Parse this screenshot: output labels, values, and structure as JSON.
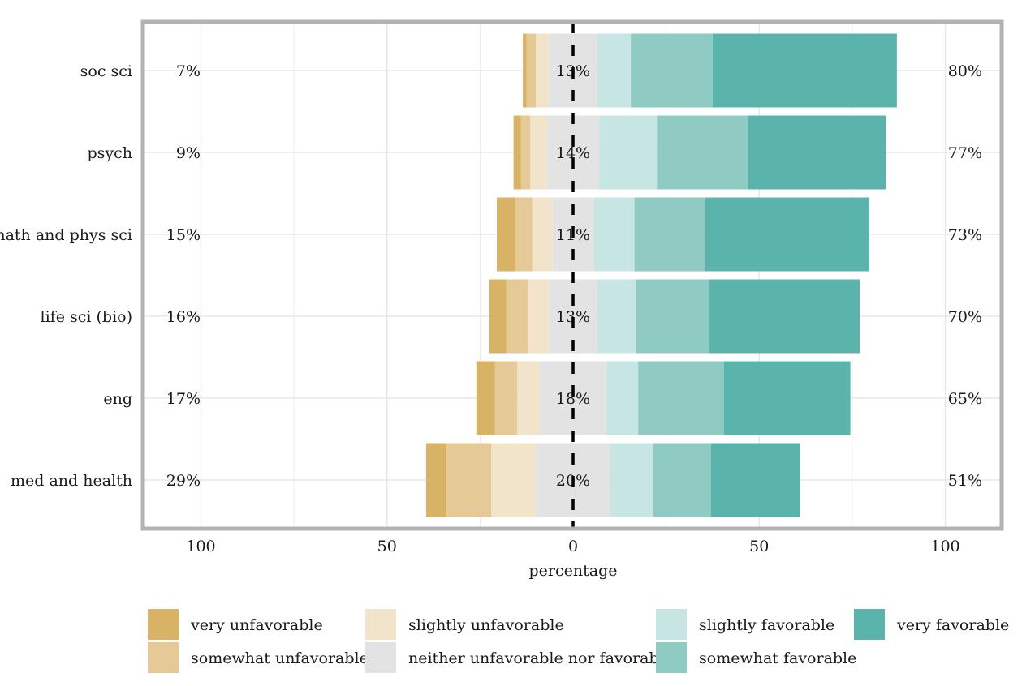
{
  "chart_data": {
    "type": "bar",
    "subtype": "diverging-stacked",
    "xlabel": "percentage",
    "xlim": [
      -115,
      115
    ],
    "xticks": [
      -100,
      -50,
      0,
      50,
      100
    ],
    "xtick_labels": [
      "100",
      "50",
      "0",
      "50",
      "100"
    ],
    "grid": true,
    "legend_position": "bottom",
    "levels": [
      {
        "name": "very unfavorable",
        "color": "#D8B365"
      },
      {
        "name": "somewhat unfavorable",
        "color": "#E5CA98"
      },
      {
        "name": "slightly unfavorable",
        "color": "#F2E4CB"
      },
      {
        "name": "neither unfavorable nor favorable",
        "color": "#E3E3E3"
      },
      {
        "name": "slightly favorable",
        "color": "#C7E5E2"
      },
      {
        "name": "somewhat favorable",
        "color": "#8FCBC2"
      },
      {
        "name": "very favorable",
        "color": "#5AB4AC"
      }
    ],
    "categories": [
      {
        "name": "soc sci",
        "values": [
          1,
          2.5,
          3.5,
          13,
          9,
          22,
          49.5
        ],
        "left_label": "7%",
        "center_label": "13%",
        "right_label": "80%"
      },
      {
        "name": "psych",
        "values": [
          2,
          2.5,
          4.5,
          14,
          15.5,
          24.5,
          37
        ],
        "left_label": "9%",
        "center_label": "14%",
        "right_label": "77%"
      },
      {
        "name": "math and phys sci",
        "values": [
          5,
          4.5,
          5.5,
          11,
          11,
          19,
          44
        ],
        "left_label": "15%",
        "center_label": "11%",
        "right_label": "73%"
      },
      {
        "name": "life sci (bio)",
        "values": [
          4.5,
          6,
          5.5,
          13,
          10.5,
          19.5,
          40.5
        ],
        "left_label": "16%",
        "center_label": "13%",
        "right_label": "70%"
      },
      {
        "name": "eng",
        "values": [
          5,
          6,
          6,
          18,
          8.5,
          23,
          34
        ],
        "left_label": "17%",
        "center_label": "18%",
        "right_label": "65%"
      },
      {
        "name": "med and health",
        "values": [
          5.5,
          12,
          12,
          20,
          11.5,
          15.5,
          24
        ],
        "left_label": "29%",
        "center_label": "20%",
        "right_label": "51%"
      }
    ]
  }
}
